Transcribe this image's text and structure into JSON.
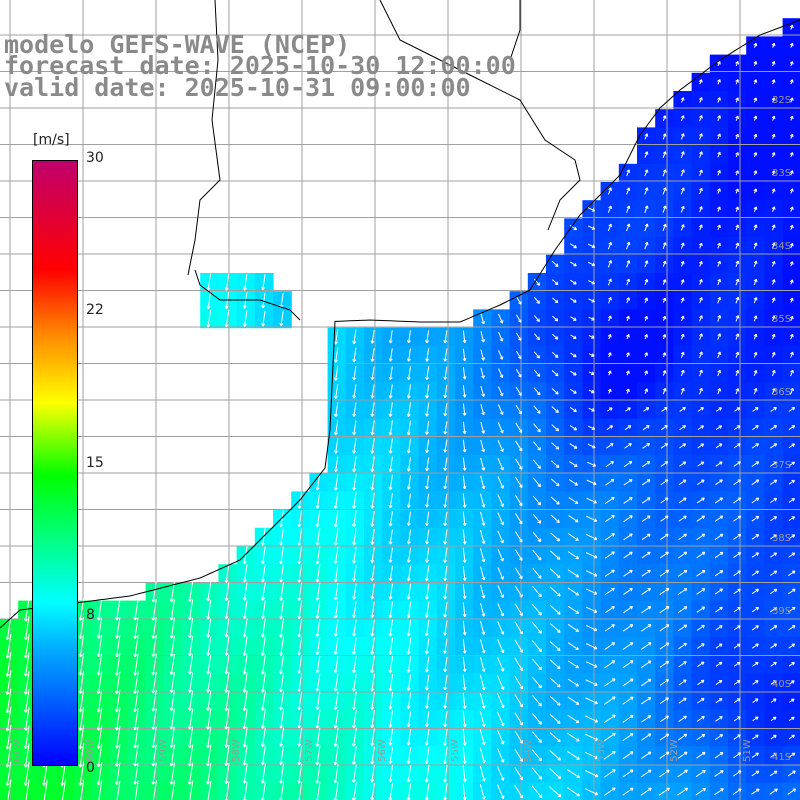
{
  "header": {
    "line1": "modelo GEFS-WAVE (NCEP)",
    "line2": "forecast date: 2025-10-30 12:00:00",
    "line3": "valid date: 2025-10-31 09:00:00"
  },
  "colorbar": {
    "unit": "[m/s]",
    "ticks": [
      "30",
      "22",
      "15",
      "8",
      "0"
    ],
    "tick_values": [
      30,
      22,
      15,
      8,
      0
    ],
    "range": [
      0,
      30
    ],
    "colors": [
      "#0000ff",
      "#00b4ff",
      "#00ffff",
      "#00ff00",
      "#ffff00",
      "#ff8000",
      "#ff0000",
      "#c0006e"
    ]
  },
  "map": {
    "land_color": "#ffffff",
    "grid_color": "#a0a0a0",
    "lat_labels": [
      "32S",
      "33S",
      "34S",
      "35S",
      "36S",
      "37S",
      "38S",
      "39S",
      "40S",
      "41S"
    ],
    "lon_labels": [
      "61W",
      "60W",
      "59W",
      "58W",
      "57W",
      "56W",
      "55W",
      "54W",
      "53W",
      "52W",
      "51W"
    ]
  }
}
